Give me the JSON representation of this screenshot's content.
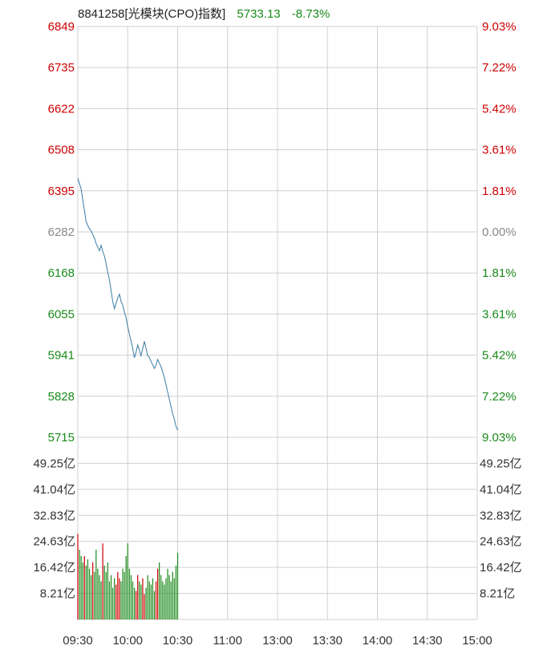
{
  "header": {
    "name": "8841258[光模块(CPO)指数]",
    "price": "5733.13",
    "change": "-8.73%"
  },
  "colors": {
    "up": "#cc0000",
    "down": "#1a8a1a",
    "neutral": "#888888",
    "line": "#3a7ca5",
    "grid": "#d0d0d0"
  },
  "chart_data": {
    "type": "line",
    "title": "8841258[光模块(CPO)指数]",
    "prev_close": 6282,
    "price_axis": {
      "ylim": [
        5715,
        6849
      ],
      "left_ticks": [
        "6849",
        "6735",
        "6622",
        "6508",
        "6395",
        "6282",
        "6168",
        "6055",
        "5941",
        "5828",
        "5715"
      ],
      "right_ticks": [
        "9.03%",
        "7.22%",
        "5.42%",
        "3.61%",
        "1.81%",
        "0.00%",
        "1.81%",
        "3.61%",
        "5.42%",
        "7.22%",
        "9.03%"
      ]
    },
    "volume_axis": {
      "ylim": [
        0,
        57.46
      ],
      "ticks": [
        "49.25亿",
        "41.04亿",
        "32.83亿",
        "24.63亿",
        "16.42亿",
        "8.21亿"
      ]
    },
    "x_ticks": [
      "09:30",
      "10:00",
      "10:30",
      "11:00",
      "13:00",
      "13:30",
      "14:00",
      "14:30",
      "15:00"
    ],
    "price_series": [
      6430,
      6415,
      6400,
      6370,
      6340,
      6310,
      6300,
      6290,
      6285,
      6275,
      6265,
      6250,
      6240,
      6230,
      6245,
      6228,
      6215,
      6195,
      6170,
      6150,
      6120,
      6090,
      6070,
      6085,
      6100,
      6110,
      6090,
      6080,
      6060,
      6045,
      6020,
      6000,
      5980,
      5960,
      5935,
      5950,
      5970,
      5955,
      5940,
      5960,
      5980,
      5960,
      5940,
      5935,
      5925,
      5915,
      5905,
      5915,
      5930,
      5920,
      5910,
      5895,
      5880,
      5860,
      5840,
      5820,
      5800,
      5780,
      5765,
      5745,
      5735
    ],
    "volume_series": [
      27,
      22,
      20,
      18,
      20,
      17,
      19,
      16,
      14,
      18,
      15,
      22,
      16,
      14,
      12,
      24,
      17,
      15,
      18,
      12,
      14,
      10,
      13,
      11,
      15,
      13,
      12,
      16,
      15,
      20,
      24,
      16,
      14,
      12,
      10,
      9,
      14,
      12,
      11,
      13,
      8,
      10,
      14,
      12,
      11,
      13,
      9,
      12,
      16,
      18,
      14,
      12,
      11,
      13,
      16,
      14,
      12,
      15,
      13,
      17,
      21
    ],
    "volume_colors": [
      "up",
      "down",
      "down",
      "down",
      "up",
      "down",
      "down",
      "down",
      "down",
      "up",
      "down",
      "down",
      "down",
      "down",
      "down",
      "up",
      "down",
      "down",
      "down",
      "down",
      "down",
      "down",
      "down",
      "up",
      "up",
      "up",
      "down",
      "down",
      "down",
      "down",
      "down",
      "down",
      "down",
      "down",
      "down",
      "up",
      "up",
      "down",
      "down",
      "up",
      "up",
      "down",
      "down",
      "down",
      "down",
      "down",
      "down",
      "up",
      "up",
      "down",
      "down",
      "down",
      "down",
      "down",
      "down",
      "down",
      "down",
      "down",
      "down",
      "down",
      "down"
    ],
    "grid": true
  }
}
